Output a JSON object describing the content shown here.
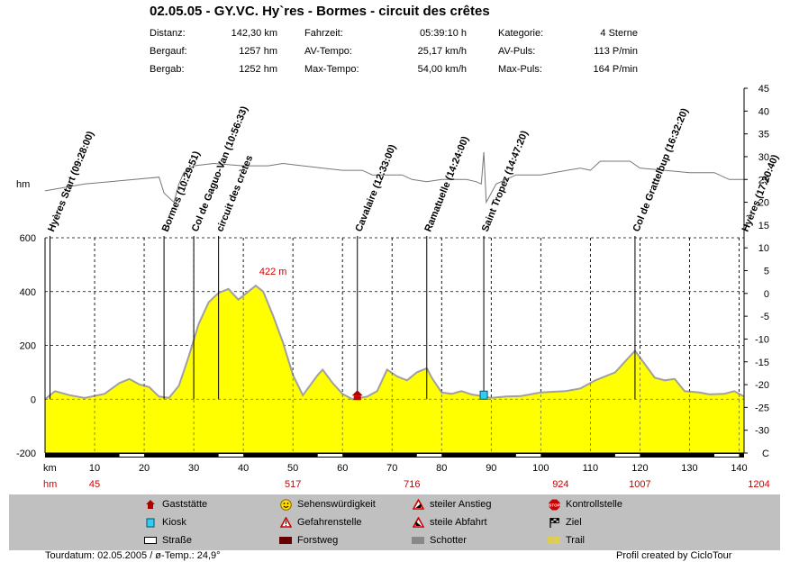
{
  "title": "02.05.05 - GY.VC. Hy`res - Bormes - circuit des crêtes",
  "stats": [
    {
      "label": "Distanz:",
      "value": "142,30 km"
    },
    {
      "label": "Bergauf:",
      "value": "1257 hm"
    },
    {
      "label": "Bergab:",
      "value": "1252 hm"
    },
    {
      "label": "Fahrzeit:",
      "value": "05:39:10 h"
    },
    {
      "label": "AV-Tempo:",
      "value": "25,17 km/h"
    },
    {
      "label": "Max-Tempo:",
      "value": "54,00 km/h"
    },
    {
      "label": "Kategorie:",
      "value": "4 Sterne"
    },
    {
      "label": "AV-Puls:",
      "value": "113 P/min"
    },
    {
      "label": "Max-Puls:",
      "value": "164 P/min"
    }
  ],
  "chart_data": {
    "type": "area",
    "xlabel": "km",
    "ylabel": "hm",
    "xlim": [
      0,
      141
    ],
    "ylim": [
      -200,
      600
    ],
    "yticks": [
      600,
      400,
      200,
      0,
      -200
    ],
    "xticks": [
      10,
      20,
      30,
      40,
      50,
      60,
      70,
      80,
      90,
      100,
      110,
      120,
      130,
      140
    ],
    "temp_axis": {
      "range": [
        -35,
        45
      ],
      "ticks": [
        "45",
        "40",
        "35",
        "30",
        "25",
        "20",
        "15",
        "10",
        "5",
        "0",
        "-5",
        "-10",
        "-15",
        "-20",
        "-25",
        "-30",
        "C"
      ]
    },
    "hm_row_label": "hm",
    "hm_row": [
      {
        "x": 2.5,
        "v": "45"
      },
      {
        "x": 12.5,
        "v": "517"
      },
      {
        "x": 18.5,
        "v": "716"
      },
      {
        "x": 26,
        "v": "924"
      },
      {
        "x": 30,
        "v": "1007"
      },
      {
        "x": 36,
        "v": "1204"
      }
    ],
    "elevation": [
      [
        0,
        0
      ],
      [
        2,
        30
      ],
      [
        5,
        15
      ],
      [
        8,
        5
      ],
      [
        12,
        20
      ],
      [
        15,
        60
      ],
      [
        17,
        75
      ],
      [
        19,
        55
      ],
      [
        21,
        45
      ],
      [
        23,
        10
      ],
      [
        25,
        5
      ],
      [
        27,
        50
      ],
      [
        29,
        160
      ],
      [
        31,
        280
      ],
      [
        33,
        360
      ],
      [
        35,
        395
      ],
      [
        37,
        410
      ],
      [
        39,
        370
      ],
      [
        41,
        400
      ],
      [
        42.5,
        422
      ],
      [
        44,
        400
      ],
      [
        46,
        310
      ],
      [
        48,
        210
      ],
      [
        50,
        90
      ],
      [
        52,
        15
      ],
      [
        55,
        90
      ],
      [
        56,
        110
      ],
      [
        58,
        60
      ],
      [
        60,
        20
      ],
      [
        62,
        0
      ],
      [
        65,
        10
      ],
      [
        67,
        30
      ],
      [
        69,
        110
      ],
      [
        71,
        85
      ],
      [
        73,
        70
      ],
      [
        75,
        100
      ],
      [
        77,
        115
      ],
      [
        78,
        80
      ],
      [
        80,
        25
      ],
      [
        82,
        20
      ],
      [
        84,
        30
      ],
      [
        86,
        18
      ],
      [
        88,
        12
      ],
      [
        90,
        5
      ],
      [
        93,
        10
      ],
      [
        96,
        12
      ],
      [
        100,
        25
      ],
      [
        105,
        30
      ],
      [
        108,
        40
      ],
      [
        111,
        70
      ],
      [
        115,
        100
      ],
      [
        117,
        140
      ],
      [
        119,
        180
      ],
      [
        121,
        130
      ],
      [
        123,
        80
      ],
      [
        125,
        70
      ],
      [
        127,
        75
      ],
      [
        129,
        30
      ],
      [
        132,
        25
      ],
      [
        134,
        18
      ],
      [
        137,
        20
      ],
      [
        139,
        30
      ],
      [
        141,
        10
      ]
    ],
    "temperature": [
      [
        0,
        22.5
      ],
      [
        8,
        24
      ],
      [
        18,
        25
      ],
      [
        23,
        25.5
      ],
      [
        24,
        22
      ],
      [
        26,
        20
      ],
      [
        27,
        24
      ],
      [
        28,
        26.5
      ],
      [
        30,
        28
      ],
      [
        34,
        28.5
      ],
      [
        40,
        28
      ],
      [
        45,
        28
      ],
      [
        48,
        28.5
      ],
      [
        52,
        28
      ],
      [
        56,
        27.5
      ],
      [
        60,
        27
      ],
      [
        62,
        27
      ],
      [
        64,
        27
      ],
      [
        66,
        26
      ],
      [
        70,
        26
      ],
      [
        72,
        26
      ],
      [
        74,
        25
      ],
      [
        77,
        24.5
      ],
      [
        80,
        25
      ],
      [
        85,
        25
      ],
      [
        87,
        24.5
      ],
      [
        88,
        24
      ],
      [
        88.5,
        31
      ],
      [
        89,
        20
      ],
      [
        91,
        24
      ],
      [
        95,
        26
      ],
      [
        100,
        26
      ],
      [
        108,
        27.5
      ],
      [
        110,
        27
      ],
      [
        112,
        29
      ],
      [
        115,
        29
      ],
      [
        118,
        29
      ],
      [
        120,
        27.5
      ],
      [
        125,
        27
      ],
      [
        130,
        26.5
      ],
      [
        135,
        26.5
      ],
      [
        138,
        25
      ],
      [
        141,
        25
      ]
    ],
    "waypoints": [
      {
        "km": 1,
        "label": "Hyères Start (09:28:00)"
      },
      {
        "km": 24,
        "label": "Bormes (10:29:51)"
      },
      {
        "km": 30,
        "label": "Col de Gaguo-Van (10:56:33)"
      },
      {
        "km": 35,
        "label": "circuit des crètes"
      },
      {
        "km": 63,
        "label": "Cavalaire (12:33:00)"
      },
      {
        "km": 77,
        "label": "Ramatuelle (14:24:00)"
      },
      {
        "km": 88.5,
        "label": "Saint Tropez (14:47:20)"
      },
      {
        "km": 119,
        "label": "Col de Grattelbup (16:32:20)"
      },
      {
        "km": 141,
        "label": "Hyères (17:20:40)"
      }
    ],
    "annotations": [
      {
        "km": 42.5,
        "label": "422 m",
        "color": "#cc0000"
      }
    ],
    "markers": [
      {
        "km": 63,
        "type": "Gaststätte"
      },
      {
        "km": 88.5,
        "type": "Kiosk"
      }
    ],
    "fill_color": "#ffff00",
    "line_color": "#a0a0a0",
    "track_color": "#000000"
  },
  "legend": [
    {
      "label": "Gaststätte",
      "icon": "house-icon"
    },
    {
      "label": "Kiosk",
      "icon": "cup-icon"
    },
    {
      "label": "Straße",
      "icon": "road-swatch"
    },
    {
      "label": "Sehenswürdigkeit",
      "icon": "smiley-icon"
    },
    {
      "label": "Gefahrenstelle",
      "icon": "warning-icon"
    },
    {
      "label": "Forstweg",
      "icon": "forest-swatch"
    },
    {
      "label": "steiler Anstieg",
      "icon": "steep-up-icon"
    },
    {
      "label": "steile Abfahrt",
      "icon": "steep-down-icon"
    },
    {
      "label": "Schotter",
      "icon": "gravel-swatch"
    },
    {
      "label": "Kontrollstelle",
      "icon": "stop-icon"
    },
    {
      "label": "Ziel",
      "icon": "flag-icon"
    },
    {
      "label": "Trail",
      "icon": "trail-swatch"
    }
  ],
  "footer": {
    "left": "Tourdatum: 02.05.2005 / ø-Temp.: 24,9°",
    "right": "Profil created by CicloTour"
  }
}
